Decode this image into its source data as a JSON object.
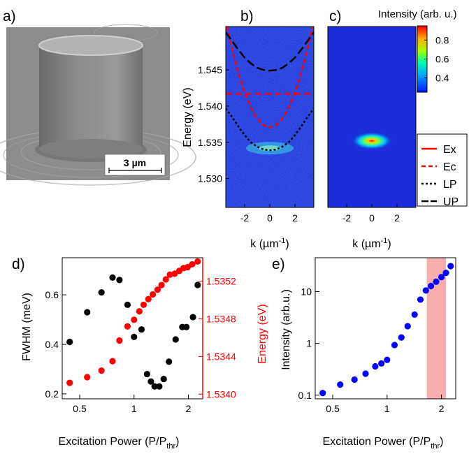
{
  "figure": {
    "panel_labels": [
      "a)",
      "b)",
      "c)",
      "d)",
      "e)"
    ]
  },
  "colorbar": {
    "title": "Intensity (arb. u.)",
    "ticks": [
      "0.8",
      "0.6",
      "0.4"
    ],
    "tick_values": [
      0.8,
      0.6,
      0.4
    ],
    "range": [
      0.25,
      0.95
    ]
  },
  "legend": {
    "entries": [
      {
        "label": "Ex",
        "color": "#ff0000",
        "dash": "solid"
      },
      {
        "label": "Ec",
        "color": "#ff0000",
        "dash": "dash"
      },
      {
        "label": "LP",
        "color": "#000000",
        "dash": "dot"
      },
      {
        "label": "UP",
        "color": "#000000",
        "dash": "longdash"
      }
    ]
  },
  "micrograph": {
    "scale_bar_label": "3 µm"
  },
  "colors": {
    "red_series": "#ff0000",
    "black_series": "#000000",
    "blue_series": "#0000ff",
    "shade": "#f4a0a0",
    "map_background": "#1b2dd8"
  },
  "chart_data": [
    {
      "panel": "b)",
      "type": "heatmap",
      "ylabel": "Energy (eV)",
      "xlabel": "k (µm",
      "xlabel_sup": "-1",
      "xlabel_end": ")",
      "xlim": [
        -3.5,
        3.5
      ],
      "ylim": [
        1.526,
        1.551
      ],
      "xticks": [
        -2,
        0,
        2
      ],
      "xtick_labels": [
        "-2",
        "0",
        "2"
      ],
      "yticks": [
        1.53,
        1.535,
        1.54,
        1.545
      ],
      "ytick_labels": [
        "1.530",
        "1.535",
        "1.540",
        "1.545"
      ],
      "curves": {
        "Ex": {
          "energy": 1.5417
        },
        "Ec": {
          "E0": 1.5371,
          "curvature": 0.00121
        },
        "LP": {
          "k": [
            -3.5,
            -3.0,
            -2.5,
            -2.0,
            -1.5,
            -1.0,
            -0.5,
            0,
            0.5,
            1.0,
            1.5,
            2.0,
            2.5,
            3.0,
            3.5
          ],
          "energy": [
            1.5397,
            1.5385,
            1.5372,
            1.536,
            1.535,
            1.5344,
            1.534,
            1.5339,
            1.534,
            1.5344,
            1.535,
            1.536,
            1.5372,
            1.5385,
            1.5397
          ]
        },
        "UP": {
          "k": [
            -3.5,
            -3.0,
            -2.5,
            -2.0,
            -1.5,
            -1.0,
            -0.5,
            0,
            0.5,
            1.0,
            1.5,
            2.0,
            2.5,
            3.0,
            3.5
          ],
          "energy": [
            1.5502,
            1.549,
            1.5478,
            1.5467,
            1.5459,
            1.5453,
            1.545,
            1.5449,
            1.545,
            1.5453,
            1.5459,
            1.5467,
            1.5478,
            1.549,
            1.5502
          ]
        }
      }
    },
    {
      "panel": "c)",
      "type": "heatmap",
      "xlabel": "k (µm",
      "xlabel_sup": "-1",
      "xlabel_end": ")",
      "xlim": [
        -3.5,
        3.5
      ],
      "ylim": [
        1.526,
        1.551
      ],
      "xticks": [
        -2,
        0,
        2
      ],
      "xtick_labels": [
        "-2",
        "0",
        "2"
      ],
      "peak": {
        "k": 0,
        "energy": 1.5352,
        "intensity": 0.95
      }
    },
    {
      "panel": "d)",
      "type": "scatter",
      "xlabel": "Excitation Power (P/P",
      "xlabel_sub": "thr",
      "xlabel_end": ")",
      "ylabel": "FWHM (meV)",
      "y2label": "Energy (eV)",
      "xscale": "log",
      "xlim": [
        0.4,
        2.4
      ],
      "ylim": [
        0.18,
        0.75
      ],
      "y2lim": [
        1.53395,
        1.53545
      ],
      "xticks": [
        0.5,
        1,
        2
      ],
      "xtick_labels": [
        "0.5",
        "1",
        "2"
      ],
      "yticks": [
        0.2,
        0.4,
        0.6
      ],
      "ytick_labels": [
        "0.2",
        "0.4",
        "0.6"
      ],
      "y2ticks": [
        1.534,
        1.5344,
        1.5348,
        1.5352
      ],
      "y2tick_labels": [
        "1.5340",
        "1.5344",
        "1.5348",
        "1.5352"
      ],
      "series": [
        {
          "axis": "left",
          "color": "#000000",
          "x": [
            0.44,
            0.55,
            0.66,
            0.76,
            0.83,
            0.92,
            1.0,
            1.1,
            1.18,
            1.24,
            1.3,
            1.38,
            1.46,
            1.56,
            1.7,
            1.85,
            1.95,
            2.12,
            2.25
          ],
          "y": [
            0.41,
            0.53,
            0.61,
            0.67,
            0.66,
            0.56,
            0.43,
            0.46,
            0.28,
            0.25,
            0.23,
            0.23,
            0.26,
            0.33,
            0.42,
            0.47,
            0.47,
            0.51,
            0.64
          ]
        },
        {
          "axis": "right",
          "color": "#ff0000",
          "x": [
            0.44,
            0.55,
            0.66,
            0.76,
            0.83,
            0.92,
            1.0,
            1.07,
            1.13,
            1.2,
            1.27,
            1.35,
            1.42,
            1.5,
            1.58,
            1.68,
            1.78,
            1.88,
            1.98,
            2.1,
            2.25
          ],
          "y": [
            1.53412,
            1.53418,
            1.53425,
            1.53435,
            1.53457,
            1.53472,
            1.53479,
            1.53488,
            1.53495,
            1.53501,
            1.53506,
            1.53511,
            1.53516,
            1.53522,
            1.53527,
            1.53528,
            1.53531,
            1.53534,
            1.53535,
            1.53538,
            1.53541
          ]
        }
      ]
    },
    {
      "panel": "e)",
      "type": "scatter",
      "xlabel": "Excitation Power (P/P",
      "xlabel_sub": "thr",
      "xlabel_end": ")",
      "ylabel": "Intensity (arb.u.)",
      "xscale": "log",
      "yscale": "log",
      "xlim": [
        0.4,
        2.4
      ],
      "ylim": [
        0.085,
        45
      ],
      "xticks": [
        0.5,
        1,
        2
      ],
      "xtick_labels": [
        "0.5",
        "1",
        "2"
      ],
      "yticks": [
        0.1,
        1,
        10
      ],
      "ytick_labels": [
        "0.1",
        "1",
        "10"
      ],
      "shaded_region": {
        "x": [
          1.66,
          2.12
        ]
      },
      "series": [
        {
          "color": "#0000ff",
          "x": [
            0.44,
            0.55,
            0.66,
            0.76,
            0.86,
            0.93,
            1.0,
            1.1,
            1.2,
            1.3,
            1.42,
            1.53,
            1.64,
            1.75,
            1.87,
            2.0,
            2.12,
            2.25
          ],
          "y": [
            0.11,
            0.16,
            0.2,
            0.26,
            0.36,
            0.41,
            0.48,
            0.93,
            1.3,
            2.15,
            3.6,
            7.0,
            10.5,
            12.8,
            15.5,
            19.0,
            23.0,
            31.0
          ]
        }
      ]
    }
  ]
}
